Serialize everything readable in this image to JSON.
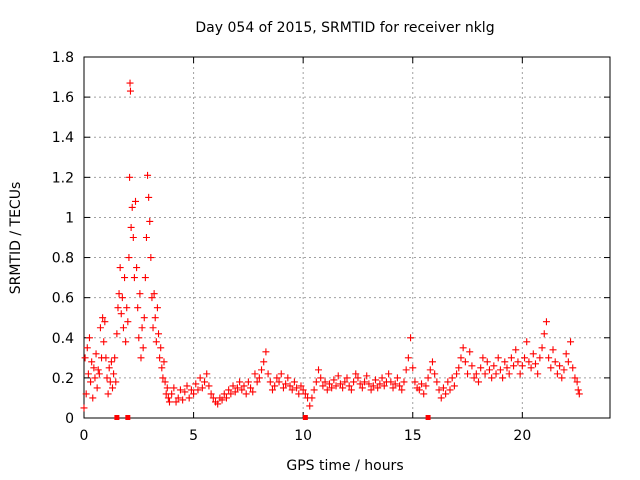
{
  "chart_data": {
    "type": "scatter",
    "title": "Day 054 of 2015, SRMTID for receiver nklg",
    "xlabel": "GPS time / hours",
    "ylabel": "SRMTID / TECUs",
    "xlim": [
      0,
      24
    ],
    "ylim": [
      0,
      1.8
    ],
    "x_ticks": [
      0,
      5,
      10,
      15,
      20
    ],
    "x_tick_labels": [
      "0",
      "5",
      "10",
      "15",
      "20"
    ],
    "y_ticks": [
      0,
      0.2,
      0.4,
      0.6,
      0.8,
      1.0,
      1.2,
      1.4,
      1.6,
      1.8
    ],
    "y_tick_labels": [
      "0",
      "0.2",
      "0.4",
      "0.6",
      "0.8",
      "1",
      "1.2",
      "1.4",
      "1.6",
      "1.8"
    ],
    "grid": true,
    "marker": "plus",
    "color": "#ff0000",
    "zero_markers_x": [
      1.5,
      2.0,
      10.1,
      15.7
    ],
    "series": [
      {
        "name": "SRMTID",
        "points": [
          [
            0.0,
            0.05
          ],
          [
            0.05,
            0.3
          ],
          [
            0.1,
            0.12
          ],
          [
            0.15,
            0.35
          ],
          [
            0.2,
            0.22
          ],
          [
            0.25,
            0.4
          ],
          [
            0.3,
            0.18
          ],
          [
            0.35,
            0.28
          ],
          [
            0.4,
            0.1
          ],
          [
            0.45,
            0.25
          ],
          [
            0.5,
            0.2
          ],
          [
            0.55,
            0.32
          ],
          [
            0.6,
            0.15
          ],
          [
            0.65,
            0.24
          ],
          [
            0.7,
            0.22
          ],
          [
            0.75,
            0.45
          ],
          [
            0.8,
            0.3
          ],
          [
            0.85,
            0.5
          ],
          [
            0.9,
            0.38
          ],
          [
            0.95,
            0.48
          ],
          [
            1.0,
            0.3
          ],
          [
            1.05,
            0.2
          ],
          [
            1.1,
            0.12
          ],
          [
            1.15,
            0.25
          ],
          [
            1.2,
            0.18
          ],
          [
            1.25,
            0.28
          ],
          [
            1.3,
            0.15
          ],
          [
            1.35,
            0.22
          ],
          [
            1.4,
            0.3
          ],
          [
            1.45,
            0.18
          ],
          [
            1.5,
            0.42
          ],
          [
            1.55,
            0.55
          ],
          [
            1.6,
            0.62
          ],
          [
            1.65,
            0.75
          ],
          [
            1.7,
            0.52
          ],
          [
            1.75,
            0.6
          ],
          [
            1.8,
            0.45
          ],
          [
            1.85,
            0.7
          ],
          [
            1.9,
            0.38
          ],
          [
            1.95,
            0.55
          ],
          [
            2.0,
            0.48
          ],
          [
            2.05,
            0.8
          ],
          [
            2.08,
            1.2
          ],
          [
            2.1,
            1.67
          ],
          [
            2.12,
            1.63
          ],
          [
            2.15,
            0.95
          ],
          [
            2.2,
            1.05
          ],
          [
            2.25,
            0.9
          ],
          [
            2.3,
            0.7
          ],
          [
            2.35,
            1.08
          ],
          [
            2.4,
            0.75
          ],
          [
            2.45,
            0.55
          ],
          [
            2.5,
            0.4
          ],
          [
            2.55,
            0.62
          ],
          [
            2.6,
            0.3
          ],
          [
            2.65,
            0.45
          ],
          [
            2.7,
            0.35
          ],
          [
            2.75,
            0.5
          ],
          [
            2.8,
            0.7
          ],
          [
            2.85,
            0.9
          ],
          [
            2.9,
            1.21
          ],
          [
            2.95,
            1.1
          ],
          [
            3.0,
            0.98
          ],
          [
            3.05,
            0.8
          ],
          [
            3.1,
            0.6
          ],
          [
            3.15,
            0.45
          ],
          [
            3.2,
            0.62
          ],
          [
            3.25,
            0.5
          ],
          [
            3.3,
            0.38
          ],
          [
            3.35,
            0.55
          ],
          [
            3.4,
            0.42
          ],
          [
            3.45,
            0.3
          ],
          [
            3.5,
            0.35
          ],
          [
            3.55,
            0.25
          ],
          [
            3.6,
            0.2
          ],
          [
            3.65,
            0.28
          ],
          [
            3.7,
            0.18
          ],
          [
            3.75,
            0.12
          ],
          [
            3.8,
            0.15
          ],
          [
            3.85,
            0.1
          ],
          [
            3.9,
            0.08
          ],
          [
            4.0,
            0.12
          ],
          [
            4.1,
            0.15
          ],
          [
            4.2,
            0.08
          ],
          [
            4.3,
            0.1
          ],
          [
            4.4,
            0.14
          ],
          [
            4.5,
            0.09
          ],
          [
            4.6,
            0.13
          ],
          [
            4.7,
            0.16
          ],
          [
            4.8,
            0.1
          ],
          [
            4.9,
            0.14
          ],
          [
            5.0,
            0.12
          ],
          [
            5.1,
            0.17
          ],
          [
            5.2,
            0.14
          ],
          [
            5.3,
            0.2
          ],
          [
            5.4,
            0.15
          ],
          [
            5.5,
            0.18
          ],
          [
            5.6,
            0.22
          ],
          [
            5.7,
            0.16
          ],
          [
            5.8,
            0.12
          ],
          [
            5.9,
            0.1
          ],
          [
            6.0,
            0.08
          ],
          [
            6.1,
            0.07
          ],
          [
            6.2,
            0.1
          ],
          [
            6.3,
            0.09
          ],
          [
            6.4,
            0.12
          ],
          [
            6.5,
            0.1
          ],
          [
            6.6,
            0.14
          ],
          [
            6.7,
            0.12
          ],
          [
            6.8,
            0.16
          ],
          [
            6.9,
            0.13
          ],
          [
            7.0,
            0.15
          ],
          [
            7.1,
            0.18
          ],
          [
            7.2,
            0.14
          ],
          [
            7.3,
            0.16
          ],
          [
            7.4,
            0.12
          ],
          [
            7.5,
            0.18
          ],
          [
            7.6,
            0.15
          ],
          [
            7.7,
            0.13
          ],
          [
            7.8,
            0.22
          ],
          [
            7.9,
            0.18
          ],
          [
            8.0,
            0.2
          ],
          [
            8.1,
            0.24
          ],
          [
            8.2,
            0.28
          ],
          [
            8.3,
            0.33
          ],
          [
            8.4,
            0.22
          ],
          [
            8.5,
            0.18
          ],
          [
            8.6,
            0.14
          ],
          [
            8.7,
            0.16
          ],
          [
            8.8,
            0.2
          ],
          [
            8.9,
            0.18
          ],
          [
            9.0,
            0.22
          ],
          [
            9.1,
            0.15
          ],
          [
            9.2,
            0.17
          ],
          [
            9.3,
            0.2
          ],
          [
            9.4,
            0.16
          ],
          [
            9.5,
            0.14
          ],
          [
            9.6,
            0.18
          ],
          [
            9.7,
            0.15
          ],
          [
            9.8,
            0.12
          ],
          [
            9.9,
            0.16
          ],
          [
            10.0,
            0.14
          ],
          [
            10.1,
            0.12
          ],
          [
            10.2,
            0.1
          ],
          [
            10.3,
            0.06
          ],
          [
            10.4,
            0.1
          ],
          [
            10.5,
            0.14
          ],
          [
            10.6,
            0.18
          ],
          [
            10.7,
            0.24
          ],
          [
            10.8,
            0.2
          ],
          [
            10.9,
            0.16
          ],
          [
            11.0,
            0.18
          ],
          [
            11.1,
            0.14
          ],
          [
            11.2,
            0.17
          ],
          [
            11.3,
            0.15
          ],
          [
            11.4,
            0.19
          ],
          [
            11.5,
            0.16
          ],
          [
            11.6,
            0.21
          ],
          [
            11.7,
            0.17
          ],
          [
            11.8,
            0.15
          ],
          [
            11.9,
            0.18
          ],
          [
            12.0,
            0.2
          ],
          [
            12.1,
            0.16
          ],
          [
            12.2,
            0.14
          ],
          [
            12.3,
            0.18
          ],
          [
            12.4,
            0.22
          ],
          [
            12.5,
            0.2
          ],
          [
            12.6,
            0.17
          ],
          [
            12.7,
            0.15
          ],
          [
            12.8,
            0.18
          ],
          [
            12.9,
            0.21
          ],
          [
            13.0,
            0.17
          ],
          [
            13.1,
            0.14
          ],
          [
            13.2,
            0.16
          ],
          [
            13.3,
            0.19
          ],
          [
            13.4,
            0.15
          ],
          [
            13.5,
            0.17
          ],
          [
            13.6,
            0.2
          ],
          [
            13.7,
            0.16
          ],
          [
            13.8,
            0.18
          ],
          [
            13.9,
            0.22
          ],
          [
            14.0,
            0.18
          ],
          [
            14.1,
            0.15
          ],
          [
            14.2,
            0.17
          ],
          [
            14.3,
            0.2
          ],
          [
            14.4,
            0.16
          ],
          [
            14.5,
            0.14
          ],
          [
            14.6,
            0.18
          ],
          [
            14.7,
            0.24
          ],
          [
            14.8,
            0.3
          ],
          [
            14.9,
            0.4
          ],
          [
            15.0,
            0.25
          ],
          [
            15.1,
            0.18
          ],
          [
            15.2,
            0.15
          ],
          [
            15.3,
            0.14
          ],
          [
            15.4,
            0.17
          ],
          [
            15.5,
            0.12
          ],
          [
            15.6,
            0.16
          ],
          [
            15.7,
            0.2
          ],
          [
            15.8,
            0.24
          ],
          [
            15.9,
            0.28
          ],
          [
            16.0,
            0.22
          ],
          [
            16.1,
            0.18
          ],
          [
            16.2,
            0.14
          ],
          [
            16.3,
            0.1
          ],
          [
            16.4,
            0.15
          ],
          [
            16.5,
            0.12
          ],
          [
            16.6,
            0.18
          ],
          [
            16.7,
            0.14
          ],
          [
            16.8,
            0.2
          ],
          [
            16.9,
            0.16
          ],
          [
            17.0,
            0.22
          ],
          [
            17.1,
            0.25
          ],
          [
            17.2,
            0.3
          ],
          [
            17.3,
            0.35
          ],
          [
            17.4,
            0.28
          ],
          [
            17.5,
            0.22
          ],
          [
            17.6,
            0.33
          ],
          [
            17.7,
            0.26
          ],
          [
            17.8,
            0.2
          ],
          [
            17.9,
            0.22
          ],
          [
            18.0,
            0.18
          ],
          [
            18.1,
            0.25
          ],
          [
            18.2,
            0.3
          ],
          [
            18.3,
            0.22
          ],
          [
            18.4,
            0.28
          ],
          [
            18.5,
            0.24
          ],
          [
            18.6,
            0.2
          ],
          [
            18.7,
            0.26
          ],
          [
            18.8,
            0.22
          ],
          [
            18.9,
            0.3
          ],
          [
            19.0,
            0.24
          ],
          [
            19.1,
            0.2
          ],
          [
            19.2,
            0.28
          ],
          [
            19.3,
            0.25
          ],
          [
            19.4,
            0.22
          ],
          [
            19.5,
            0.3
          ],
          [
            19.6,
            0.26
          ],
          [
            19.7,
            0.34
          ],
          [
            19.8,
            0.28
          ],
          [
            19.9,
            0.22
          ],
          [
            20.0,
            0.26
          ],
          [
            20.1,
            0.3
          ],
          [
            20.2,
            0.38
          ],
          [
            20.3,
            0.28
          ],
          [
            20.4,
            0.25
          ],
          [
            20.5,
            0.32
          ],
          [
            20.6,
            0.27
          ],
          [
            20.7,
            0.22
          ],
          [
            20.8,
            0.3
          ],
          [
            20.9,
            0.35
          ],
          [
            21.0,
            0.42
          ],
          [
            21.1,
            0.48
          ],
          [
            21.2,
            0.3
          ],
          [
            21.3,
            0.25
          ],
          [
            21.4,
            0.34
          ],
          [
            21.5,
            0.28
          ],
          [
            21.6,
            0.22
          ],
          [
            21.7,
            0.26
          ],
          [
            21.8,
            0.2
          ],
          [
            21.9,
            0.24
          ],
          [
            22.0,
            0.32
          ],
          [
            22.1,
            0.28
          ],
          [
            22.2,
            0.38
          ],
          [
            22.3,
            0.25
          ],
          [
            22.4,
            0.2
          ],
          [
            22.5,
            0.18
          ],
          [
            22.55,
            0.14
          ],
          [
            22.6,
            0.12
          ]
        ]
      }
    ]
  }
}
